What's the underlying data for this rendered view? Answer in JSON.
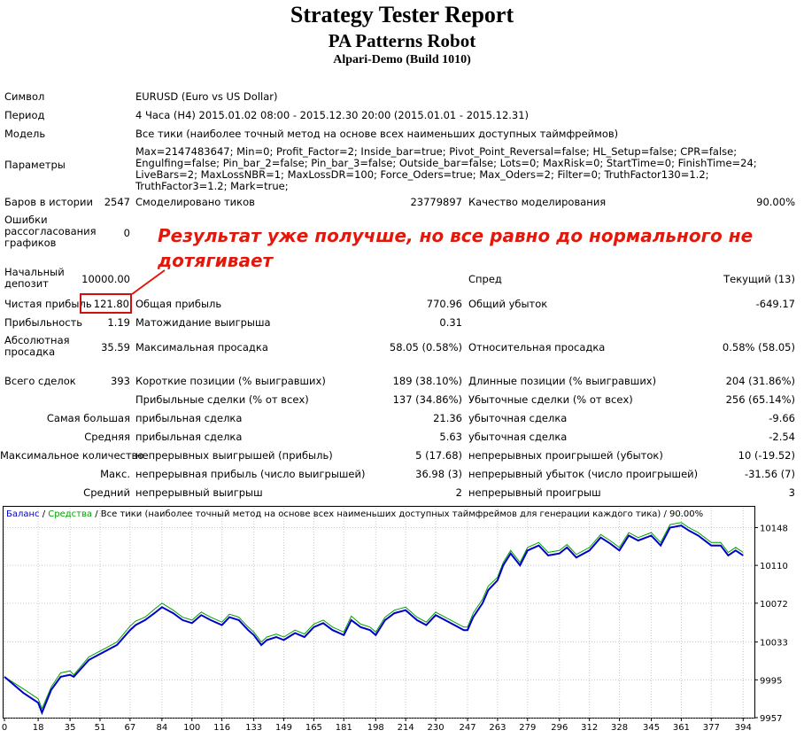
{
  "header": {
    "title": "Strategy Tester Report",
    "subtitle": "PA Patterns Robot",
    "server": "Alpari-Demo (Build 1010)"
  },
  "info": {
    "symbol_label": "Символ",
    "symbol_value": "EURUSD (Euro vs US Dollar)",
    "period_label": "Период",
    "period_value": "4 Часа (H4) 2015.01.02 08:00 - 2015.12.30 20:00 (2015.01.01 - 2015.12.31)",
    "model_label": "Модель",
    "model_value": "Все тики (наиболее точный метод на основе всех наименьших доступных таймфреймов)",
    "params_label": "Параметры",
    "params_value": "Max=2147483647; Min=0; Profit_Factor=2; Inside_bar=true; Pivot_Point_Reversal=false; HL_Setup=false; CPR=false; Engulfing=false; Pin_bar_2=false; Pin_bar_3=false; Outside_bar=false; Lots=0; MaxRisk=0; StartTime=0; FinishTime=24; LiveBars=2; MaxLossNBR=1; MaxLossDR=100; Force_Oders=true; Max_Oders=2; Filter=0; TruthFactor130=1.2; TruthFactor3=1.2; Mark=true;"
  },
  "stats": {
    "bars_label": "Баров в истории",
    "bars_value": "2547",
    "ticks_label": "Смоделировано тиков",
    "ticks_value": "23779897",
    "quality_label": "Качество моделирования",
    "quality_value": "90.00%",
    "errors_label": "Ошибки рассогласования графиков",
    "errors_value": "0",
    "deposit_label": "Начальный депозит",
    "deposit_value": "10000.00",
    "spread_label": "Спред",
    "spread_value": "Текущий (13)",
    "net_label": "Чистая прибыль",
    "net_value": "121.80",
    "gross_profit_label": "Общая прибыль",
    "gross_profit_value": "770.96",
    "gross_loss_label": "Общий убыток",
    "gross_loss_value": "-649.17",
    "pf_label": "Прибыльность",
    "pf_value": "1.19",
    "expected_label": "Матожидание выигрыша",
    "expected_value": "0.31",
    "abs_dd_label": "Абсолютная просадка",
    "abs_dd_value": "35.59",
    "max_dd_label": "Максимальная просадка",
    "max_dd_value": "58.05 (0.58%)",
    "rel_dd_label": "Относительная просадка",
    "rel_dd_value": "0.58% (58.05)",
    "trades_label": "Всего сделок",
    "trades_value": "393",
    "short_label": "Короткие позиции (% выигравших)",
    "short_value": "189 (38.10%)",
    "long_label": "Длинные позиции (% выигравших)",
    "long_value": "204 (31.86%)",
    "profit_trades_label": "Прибыльные сделки (% от всех)",
    "profit_trades_value": "137 (34.86%)",
    "loss_trades_label": "Убыточные сделки (% от всех)",
    "loss_trades_value": "256 (65.14%)",
    "largest_label": "Самая большая",
    "largest_profit_label": "прибыльная сделка",
    "largest_profit_value": "21.36",
    "largest_loss_label": "убыточная сделка",
    "largest_loss_value": "-9.66",
    "avg_label": "Средняя",
    "avg_profit_label": "прибыльная сделка",
    "avg_profit_value": "5.63",
    "avg_loss_label": "убыточная сделка",
    "avg_loss_value": "-2.54",
    "maxcount_label": "Максимальное количество",
    "maxcount_wins_label": "непрерывных выигрышей (прибыль)",
    "maxcount_wins_value": "5 (17.68)",
    "maxcount_losses_label": "непрерывных проигрышей (убыток)",
    "maxcount_losses_value": "10 (-19.52)",
    "maxsum_label": "Макс.",
    "maxsum_profit_label": "непрерывная прибыль (число выигрышей)",
    "maxsum_profit_value": "36.98 (3)",
    "maxsum_loss_label": "непрерывный убыток (число проигрышей)",
    "maxsum_loss_value": "-31.56 (7)",
    "avgcons_label": "Средний",
    "avgcons_win_label": "непрерывный выигрыш",
    "avgcons_win_value": "2",
    "avgcons_loss_label": "непрерывный проигрыш",
    "avgcons_loss_value": "3"
  },
  "annotation": "Результат уже получше, но все равно до нормального не дотягивает",
  "chart_legend": {
    "balance": "Баланс",
    "sep1": " / ",
    "equity": "Средства",
    "rest": " / Все тики (наиболее точный метод на основе всех наименьших доступных таймфреймов для генерации каждого тика) / 90.00%"
  },
  "colors": {
    "balance": "#0000c8",
    "equity": "#00a000",
    "highlight": "#cc1111",
    "annotation": "#e3170a",
    "grid": "#c8c8c8"
  },
  "chart_data": {
    "type": "line",
    "xlabel": "",
    "ylabel": "",
    "xlim": [
      0,
      400
    ],
    "ylim": [
      9957,
      10168
    ],
    "grid": true,
    "x_ticks": [
      0,
      18,
      35,
      51,
      67,
      84,
      100,
      116,
      133,
      149,
      165,
      181,
      198,
      214,
      230,
      247,
      263,
      279,
      296,
      312,
      328,
      345,
      361,
      377,
      394
    ],
    "y_ticks": [
      9957,
      9995,
      10033,
      10072,
      10110,
      10148
    ],
    "series": [
      {
        "name": "Баланс",
        "x": [
          0,
          5,
          10,
          18,
          20,
          25,
          30,
          35,
          37,
          45,
          50,
          55,
          60,
          67,
          70,
          75,
          80,
          84,
          90,
          95,
          100,
          105,
          110,
          116,
          120,
          125,
          130,
          133,
          137,
          140,
          145,
          149,
          155,
          160,
          165,
          170,
          175,
          181,
          185,
          190,
          195,
          198,
          203,
          208,
          214,
          220,
          225,
          230,
          235,
          240,
          245,
          247,
          250,
          255,
          258,
          263,
          266,
          270,
          275,
          279,
          285,
          290,
          296,
          300,
          305,
          312,
          318,
          323,
          328,
          333,
          338,
          345,
          350,
          355,
          361,
          365,
          370,
          377,
          382,
          386,
          390,
          394
        ],
        "values": [
          9998,
          9990,
          9982,
          9972,
          9962,
          9985,
          9998,
          10000,
          9998,
          10015,
          10020,
          10025,
          10030,
          10045,
          10050,
          10055,
          10062,
          10068,
          10062,
          10055,
          10052,
          10060,
          10055,
          10050,
          10058,
          10055,
          10045,
          10040,
          10030,
          10035,
          10038,
          10035,
          10042,
          10038,
          10048,
          10052,
          10045,
          10040,
          10055,
          10048,
          10045,
          10040,
          10055,
          10062,
          10065,
          10055,
          10050,
          10060,
          10055,
          10050,
          10045,
          10045,
          10058,
          10072,
          10085,
          10095,
          10110,
          10122,
          10110,
          10125,
          10130,
          10120,
          10122,
          10128,
          10118,
          10125,
          10138,
          10132,
          10125,
          10140,
          10135,
          10140,
          10130,
          10148,
          10150,
          10145,
          10140,
          10130,
          10130,
          10120,
          10125,
          10120
        ]
      },
      {
        "name": "Средства",
        "x": [
          0,
          5,
          10,
          18,
          20,
          25,
          30,
          35,
          37,
          45,
          50,
          55,
          60,
          67,
          70,
          75,
          80,
          84,
          90,
          95,
          100,
          105,
          110,
          116,
          120,
          125,
          130,
          133,
          137,
          140,
          145,
          149,
          155,
          160,
          165,
          170,
          175,
          181,
          185,
          190,
          195,
          198,
          203,
          208,
          214,
          220,
          225,
          230,
          235,
          240,
          245,
          247,
          250,
          255,
          258,
          263,
          266,
          270,
          275,
          279,
          285,
          290,
          296,
          300,
          305,
          312,
          318,
          323,
          328,
          333,
          338,
          345,
          350,
          355,
          361,
          365,
          370,
          377,
          382,
          386,
          390,
          394
        ],
        "values": [
          9998,
          9992,
          9986,
          9976,
          9966,
          9988,
          10002,
          10004,
          10000,
          10018,
          10023,
          10028,
          10033,
          10049,
          10054,
          10058,
          10066,
          10072,
          10065,
          10058,
          10055,
          10063,
          10058,
          10053,
          10061,
          10058,
          10048,
          10043,
          10033,
          10038,
          10041,
          10038,
          10045,
          10041,
          10051,
          10055,
          10048,
          10043,
          10059,
          10051,
          10048,
          10043,
          10058,
          10065,
          10068,
          10058,
          10053,
          10063,
          10058,
          10053,
          10048,
          10048,
          10062,
          10076,
          10089,
          10098,
          10113,
          10125,
          10113,
          10128,
          10133,
          10123,
          10125,
          10131,
          10121,
          10128,
          10141,
          10135,
          10128,
          10143,
          10138,
          10143,
          10133,
          10151,
          10153,
          10148,
          10143,
          10133,
          10133,
          10123,
          10128,
          10123
        ]
      }
    ]
  }
}
